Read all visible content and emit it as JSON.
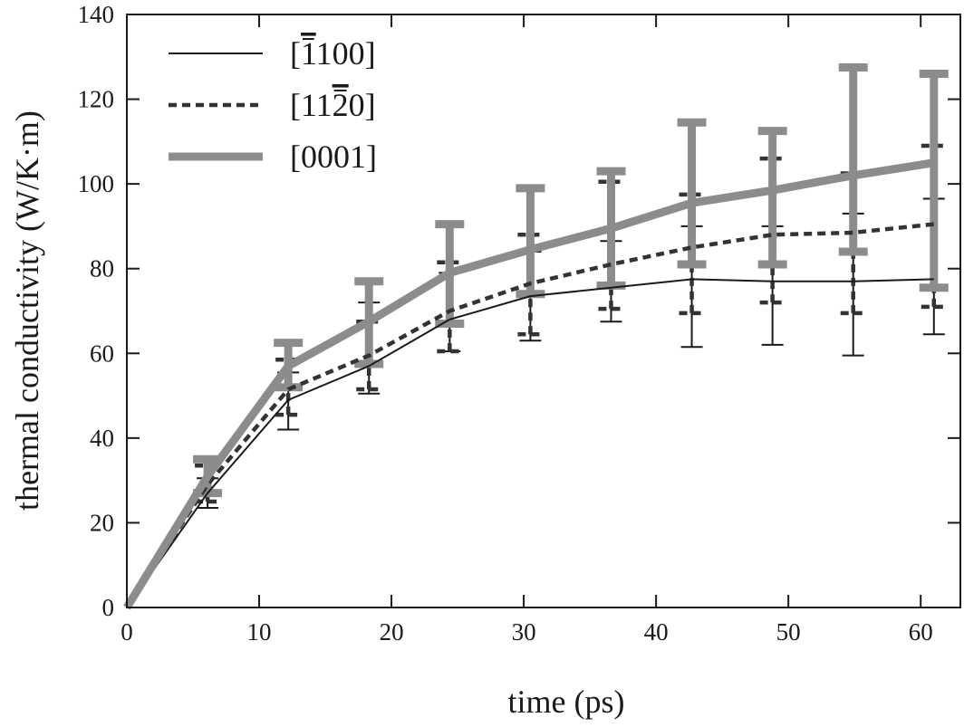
{
  "chart_data": {
    "type": "line",
    "title": "",
    "xlabel": "time (ps)",
    "ylabel": "thermal conductivity (W/K·m)",
    "xlim": [
      0,
      63
    ],
    "ylim": [
      0,
      140
    ],
    "xticks": [
      0,
      10,
      20,
      30,
      40,
      50,
      60
    ],
    "yticks": [
      0,
      20,
      40,
      60,
      80,
      100,
      120,
      140
    ],
    "grid": false,
    "legend_position": "top-left",
    "x": [
      0,
      6.1,
      12.2,
      18.3,
      24.4,
      30.5,
      36.6,
      42.7,
      48.8,
      54.9,
      61
    ],
    "series": [
      {
        "name": "[1̄100]",
        "legend_label": "[1100]",
        "overbar_char_index": 1,
        "style": "solid-thin",
        "color": "#1a1a1a",
        "values": [
          0,
          27,
          49,
          57,
          68,
          73.5,
          75.5,
          77.5,
          77,
          77,
          77.5
        ],
        "err_low": [
          0,
          23.5,
          42,
          50.5,
          60.5,
          63,
          67.5,
          61.5,
          62,
          59.5,
          64.5
        ],
        "err_high": [
          0,
          30.5,
          55.5,
          72,
          79,
          84,
          86.5,
          90,
          90,
          93,
          96.5
        ]
      },
      {
        "name": "[112̄0]",
        "legend_label": "[1120]",
        "overbar_char_index": 3,
        "style": "dotted",
        "color": "#333333",
        "values": [
          0,
          29,
          51.5,
          59.5,
          70,
          76.5,
          81,
          85,
          88,
          88.5,
          90.5
        ],
        "err_low": [
          0,
          25,
          45.5,
          51.5,
          60.5,
          64.5,
          70.5,
          69.5,
          72,
          69.5,
          71
        ],
        "err_high": [
          0,
          33.5,
          58.5,
          67.5,
          81.5,
          88,
          100.5,
          97.5,
          106,
          102.5,
          109
        ]
      },
      {
        "name": "[0001]",
        "legend_label": "[0001]",
        "overbar_char_index": -1,
        "style": "thick-gray",
        "color": "#8c8c8c",
        "values": [
          0,
          31,
          57,
          67.5,
          79,
          84.5,
          89.5,
          95.5,
          98.5,
          102,
          105
        ],
        "err_low": [
          0,
          27,
          52,
          57.5,
          67,
          74,
          76,
          81,
          81,
          84,
          75.5
        ],
        "err_high": [
          0,
          35,
          62.5,
          77,
          90.5,
          99,
          103,
          114.5,
          112.5,
          127.5,
          126
        ]
      }
    ]
  }
}
